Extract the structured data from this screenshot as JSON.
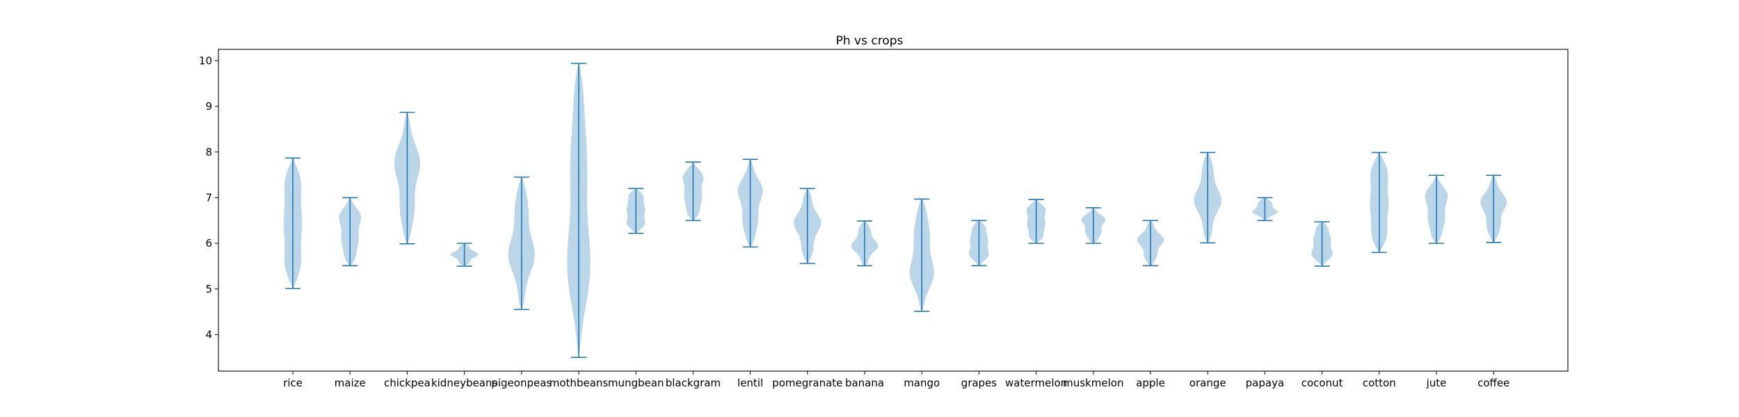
{
  "chart_data": {
    "type": "violin",
    "title": "Ph vs crops",
    "xlabel": "",
    "ylabel": "",
    "ylim": [
      3.2,
      10.25
    ],
    "yticks": [
      4,
      5,
      6,
      7,
      8,
      9,
      10
    ],
    "grid": false,
    "colors": {
      "body": "#1f77b4",
      "line": "#1f77b4",
      "axis": "#000000"
    },
    "categories": [
      "rice",
      "maize",
      "chickpea",
      "kidneybeans",
      "pigeonpeas",
      "mothbeans",
      "mungbean",
      "blackgram",
      "lentil",
      "pomegranate",
      "banana",
      "mango",
      "grapes",
      "watermelon",
      "muskmelon",
      "apple",
      "orange",
      "papaya",
      "coconut",
      "cotton",
      "jute",
      "coffee"
    ],
    "series": [
      {
        "category": "rice",
        "min": 5.01,
        "max": 7.87
      },
      {
        "category": "maize",
        "min": 5.51,
        "max": 7.0
      },
      {
        "category": "chickpea",
        "min": 5.99,
        "max": 8.87
      },
      {
        "category": "kidneybeans",
        "min": 5.5,
        "max": 6.0
      },
      {
        "category": "pigeonpeas",
        "min": 4.55,
        "max": 7.45
      },
      {
        "category": "mothbeans",
        "min": 3.5,
        "max": 9.94
      },
      {
        "category": "mungbean",
        "min": 6.22,
        "max": 7.2
      },
      {
        "category": "blackgram",
        "min": 6.5,
        "max": 7.78
      },
      {
        "category": "lentil",
        "min": 5.92,
        "max": 7.84
      },
      {
        "category": "pomegranate",
        "min": 5.56,
        "max": 7.2
      },
      {
        "category": "banana",
        "min": 5.51,
        "max": 6.49
      },
      {
        "category": "mango",
        "min": 4.51,
        "max": 6.97
      },
      {
        "category": "grapes",
        "min": 5.51,
        "max": 6.5
      },
      {
        "category": "watermelon",
        "min": 6.0,
        "max": 6.96
      },
      {
        "category": "muskmelon",
        "min": 6.0,
        "max": 6.78
      },
      {
        "category": "apple",
        "min": 5.51,
        "max": 6.5
      },
      {
        "category": "orange",
        "min": 6.01,
        "max": 7.99
      },
      {
        "category": "papaya",
        "min": 6.5,
        "max": 7.0
      },
      {
        "category": "coconut",
        "min": 5.5,
        "max": 6.47
      },
      {
        "category": "cotton",
        "min": 5.8,
        "max": 7.99
      },
      {
        "category": "jute",
        "min": 6.0,
        "max": 7.49
      },
      {
        "category": "coffee",
        "min": 6.02,
        "max": 7.49
      }
    ]
  }
}
